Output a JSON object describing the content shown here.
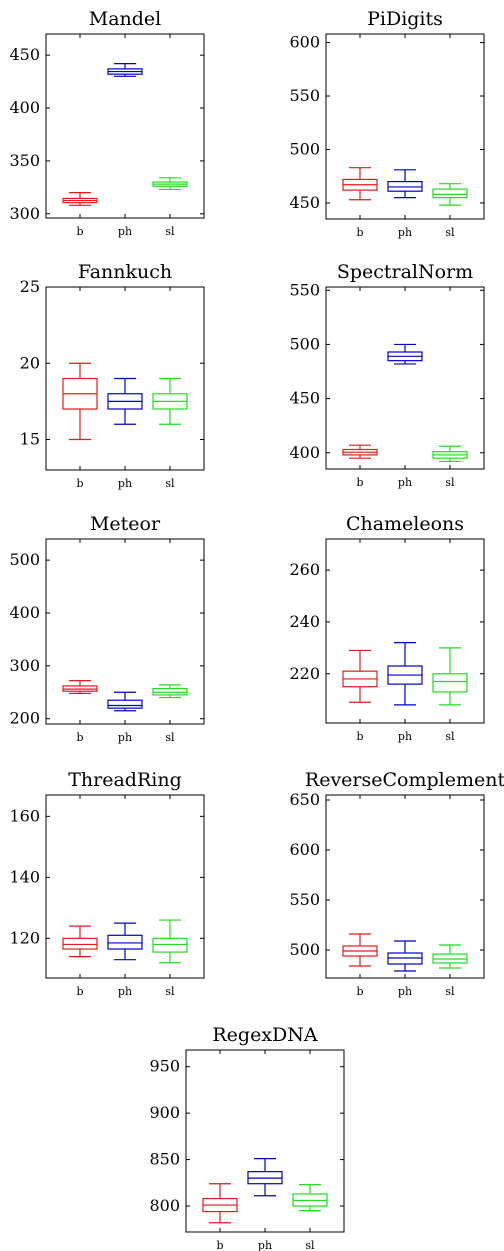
{
  "colors": {
    "b": "#e41a1c",
    "ph": "#0000cc",
    "sl": "#22dd22"
  },
  "chart_data": [
    {
      "type": "box",
      "title": "Mandel",
      "categories": [
        "b",
        "ph",
        "sl"
      ],
      "ylim": [
        296,
        470
      ],
      "yticks": [
        300,
        350,
        400,
        450
      ],
      "series": [
        {
          "name": "b",
          "min": 308,
          "q1": 310.5,
          "median": 312.5,
          "q3": 314.5,
          "max": 320
        },
        {
          "name": "ph",
          "min": 430,
          "q1": 432,
          "median": 434.5,
          "q3": 437,
          "max": 442
        },
        {
          "name": "sl",
          "min": 323,
          "q1": 326,
          "median": 328,
          "q3": 330,
          "max": 334
        }
      ]
    },
    {
      "type": "box",
      "title": "PiDigits",
      "categories": [
        "b",
        "ph",
        "sl"
      ],
      "ylim": [
        435,
        608
      ],
      "yticks": [
        450,
        500,
        550,
        600
      ],
      "series": [
        {
          "name": "b",
          "min": 453,
          "q1": 462,
          "median": 467,
          "q3": 472,
          "max": 483
        },
        {
          "name": "ph",
          "min": 455,
          "q1": 461,
          "median": 465,
          "q3": 470,
          "max": 481
        },
        {
          "name": "sl",
          "min": 448,
          "q1": 455,
          "median": 458,
          "q3": 463,
          "max": 468
        }
      ]
    },
    {
      "type": "box",
      "title": "Fannkuch",
      "categories": [
        "b",
        "ph",
        "sl"
      ],
      "ylim": [
        13,
        25
      ],
      "yticks": [
        15,
        20,
        25
      ],
      "series": [
        {
          "name": "b",
          "min": 15,
          "q1": 17,
          "median": 18,
          "q3": 19,
          "max": 20
        },
        {
          "name": "ph",
          "min": 16,
          "q1": 17,
          "median": 17.5,
          "q3": 18,
          "max": 19
        },
        {
          "name": "sl",
          "min": 16,
          "q1": 17,
          "median": 17.5,
          "q3": 18,
          "max": 19
        }
      ]
    },
    {
      "type": "box",
      "title": "SpectralNorm",
      "categories": [
        "b",
        "ph",
        "sl"
      ],
      "ylim": [
        385,
        553
      ],
      "yticks": [
        400,
        450,
        500,
        550
      ],
      "series": [
        {
          "name": "b",
          "min": 395,
          "q1": 398,
          "median": 400.5,
          "q3": 403,
          "max": 407
        },
        {
          "name": "ph",
          "min": 482,
          "q1": 485,
          "median": 489,
          "q3": 493,
          "max": 500
        },
        {
          "name": "sl",
          "min": 392,
          "q1": 395,
          "median": 398,
          "q3": 401,
          "max": 406
        }
      ]
    },
    {
      "type": "box",
      "title": "Meteor",
      "categories": [
        "b",
        "ph",
        "sl"
      ],
      "ylim": [
        190,
        540
      ],
      "yticks": [
        200,
        300,
        400,
        500
      ],
      "series": [
        {
          "name": "b",
          "min": 248,
          "q1": 252,
          "median": 256,
          "q3": 262,
          "max": 272
        },
        {
          "name": "ph",
          "min": 215,
          "q1": 220,
          "median": 225,
          "q3": 235,
          "max": 250
        },
        {
          "name": "sl",
          "min": 240,
          "q1": 245,
          "median": 250,
          "q3": 257,
          "max": 264
        }
      ]
    },
    {
      "type": "box",
      "title": "Chameleons",
      "categories": [
        "b",
        "ph",
        "sl"
      ],
      "ylim": [
        201,
        272
      ],
      "yticks": [
        220,
        240,
        260
      ],
      "series": [
        {
          "name": "b",
          "min": 209,
          "q1": 215,
          "median": 218,
          "q3": 221,
          "max": 229
        },
        {
          "name": "ph",
          "min": 208,
          "q1": 216,
          "median": 219.5,
          "q3": 223,
          "max": 232
        },
        {
          "name": "sl",
          "min": 208,
          "q1": 213,
          "median": 217,
          "q3": 220,
          "max": 230
        }
      ]
    },
    {
      "type": "box",
      "title": "ThreadRing",
      "categories": [
        "b",
        "ph",
        "sl"
      ],
      "ylim": [
        107,
        167
      ],
      "yticks": [
        120,
        140,
        160
      ],
      "series": [
        {
          "name": "b",
          "min": 114,
          "q1": 116.5,
          "median": 118,
          "q3": 120,
          "max": 124
        },
        {
          "name": "ph",
          "min": 113,
          "q1": 116.5,
          "median": 118.5,
          "q3": 121,
          "max": 125
        },
        {
          "name": "sl",
          "min": 112,
          "q1": 115.5,
          "median": 118,
          "q3": 120,
          "max": 126
        }
      ]
    },
    {
      "type": "box",
      "title": "ReverseComplement",
      "categories": [
        "b",
        "ph",
        "sl"
      ],
      "ylim": [
        472,
        655
      ],
      "yticks": [
        500,
        550,
        600,
        650
      ],
      "series": [
        {
          "name": "b",
          "min": 484,
          "q1": 494,
          "median": 499,
          "q3": 504,
          "max": 516
        },
        {
          "name": "ph",
          "min": 479,
          "q1": 486,
          "median": 492,
          "q3": 497,
          "max": 509
        },
        {
          "name": "sl",
          "min": 482,
          "q1": 487,
          "median": 491,
          "q3": 496,
          "max": 505
        }
      ]
    },
    {
      "type": "box",
      "title": "RegexDNA",
      "categories": [
        "b",
        "ph",
        "sl"
      ],
      "ylim": [
        772,
        968
      ],
      "yticks": [
        800,
        850,
        900,
        950
      ],
      "series": [
        {
          "name": "b",
          "min": 782,
          "q1": 794,
          "median": 801,
          "q3": 808,
          "max": 824
        },
        {
          "name": "ph",
          "min": 811,
          "q1": 824,
          "median": 830,
          "q3": 837,
          "max": 851
        },
        {
          "name": "sl",
          "min": 795,
          "q1": 800,
          "median": 806,
          "q3": 813,
          "max": 823
        }
      ]
    }
  ]
}
